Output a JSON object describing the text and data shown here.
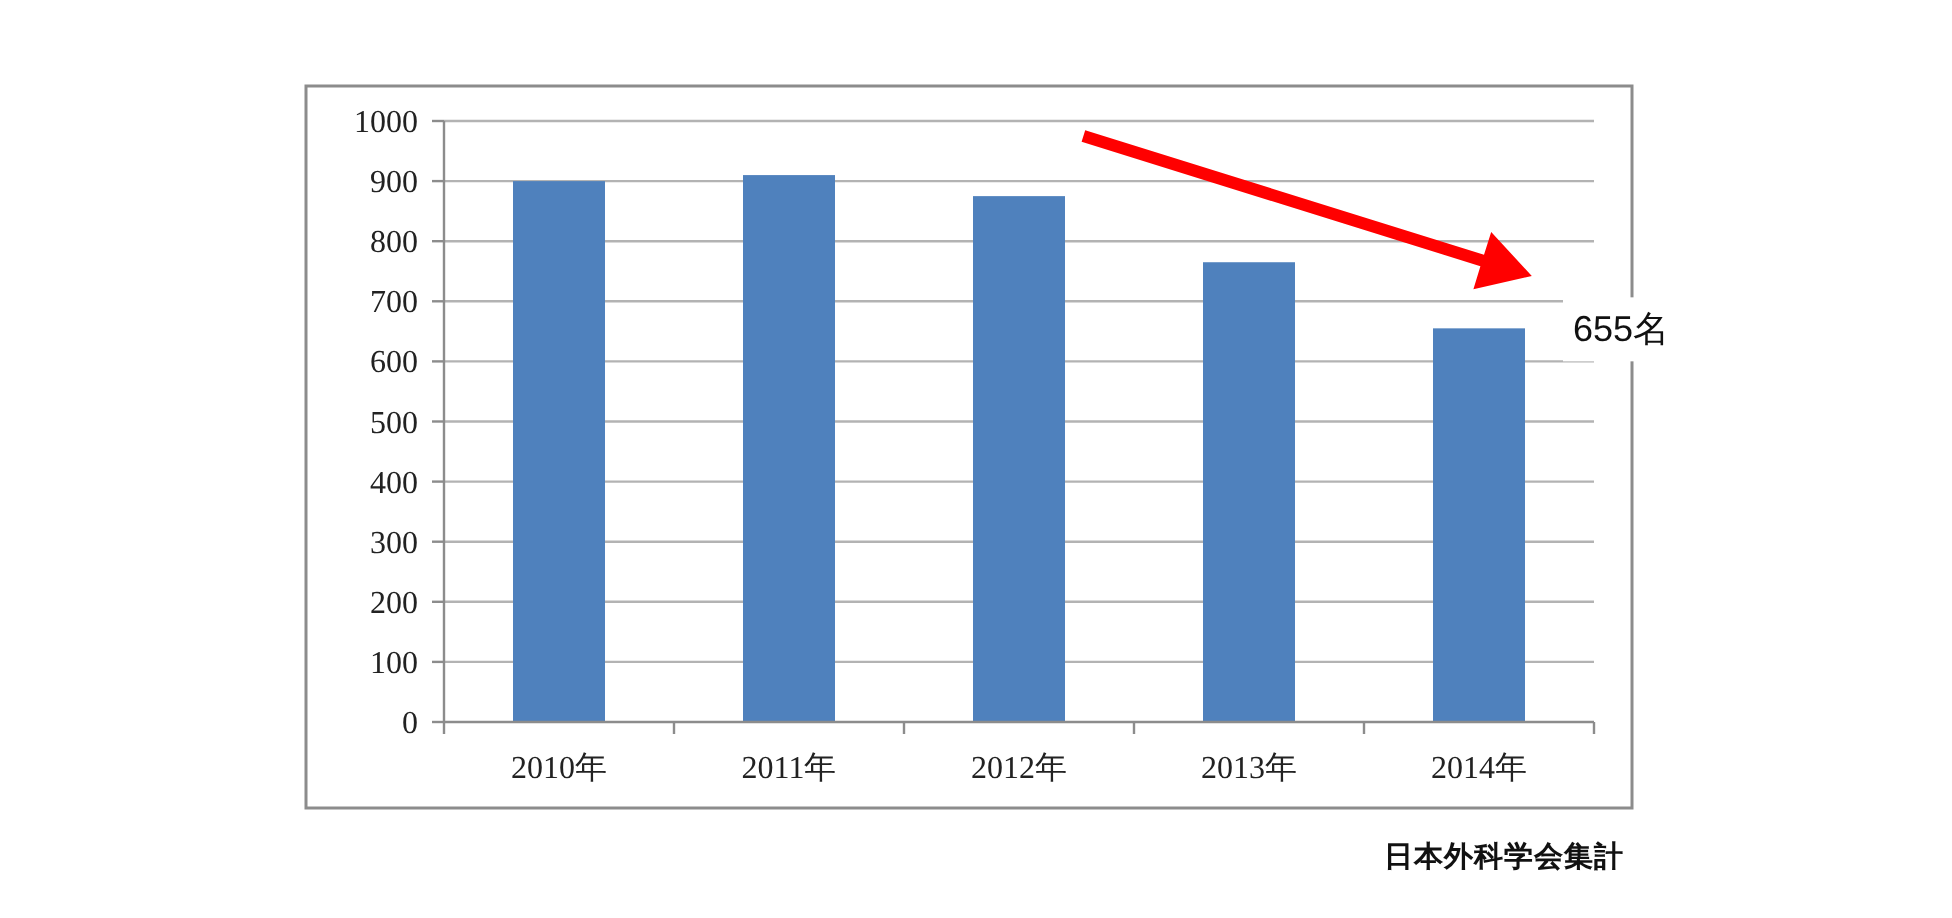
{
  "chart_data": {
    "type": "bar",
    "categories": [
      "2010年",
      "2011年",
      "2012年",
      "2013年",
      "2014年"
    ],
    "values": [
      900,
      910,
      875,
      765,
      655
    ],
    "color": "#4f81bd",
    "ylim": [
      0,
      1000
    ],
    "yticks": [
      0,
      100,
      200,
      300,
      400,
      500,
      600,
      700,
      800,
      900,
      1000
    ],
    "grid": "y",
    "annotations": [
      {
        "text": "655名",
        "x": "2014年",
        "y": 655
      },
      "日本外科学会集計"
    ]
  }
}
